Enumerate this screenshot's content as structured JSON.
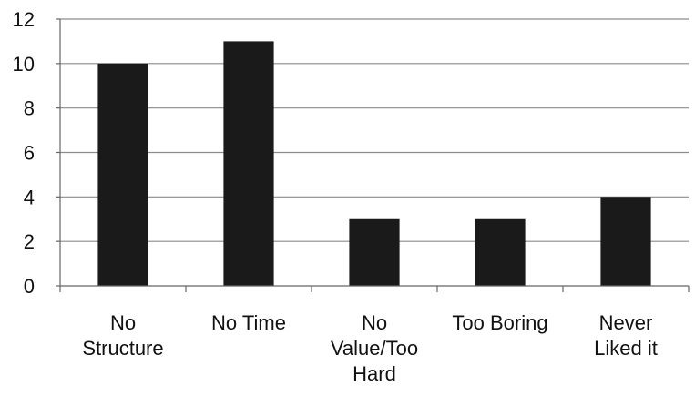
{
  "chart_data": {
    "type": "bar",
    "categories": [
      [
        "No",
        "Structure"
      ],
      [
        "No Time"
      ],
      [
        "No",
        "Value/Too",
        "Hard"
      ],
      [
        "Too Boring"
      ],
      [
        "Never",
        "Liked it"
      ]
    ],
    "values": [
      10,
      11,
      3,
      3,
      4
    ],
    "ylim": [
      0,
      12
    ],
    "yticks": [
      0,
      2,
      4,
      6,
      8,
      10,
      12
    ],
    "grid": true,
    "legend": "none",
    "colors": {
      "bar": "#1a1a1a",
      "grid": "#8c8c8c",
      "axis": "#666666",
      "text": "#111111"
    }
  }
}
